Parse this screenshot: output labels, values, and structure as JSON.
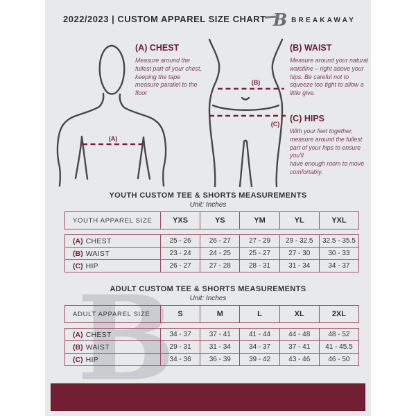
{
  "header": {
    "title": "2022/2023  |  CUSTOM APPAREL SIZE CHART",
    "brand": "BREAKAWAY",
    "logo_letter": "B"
  },
  "guide": {
    "chest": {
      "label": "(A) CHEST",
      "text": "Measure around the fullest part of your chest, keeping the tape measure parallel to the floor"
    },
    "waist": {
      "label": "(B) WAIST",
      "text": "Measure around your natural waistline – right above your hips. Be careful not to squeeze too tight to allow a little give."
    },
    "hips": {
      "label": "(C) HIPS",
      "text": "With your feet together, measure around the fullest part of your hips to ensure you'll\nhave enough room to move comfortably."
    },
    "marker_a": "(A)",
    "marker_b": "(B)",
    "marker_c": "(C)"
  },
  "youth": {
    "title": "YOUTH CUSTOM TEE & SHORTS MEASUREMENTS",
    "unit": "Unit: Inches",
    "header": [
      "YOUTH APPAREL SIZE",
      "YXS",
      "YS",
      "YM",
      "YL",
      "YXL"
    ],
    "rows": [
      {
        "key": "(A)",
        "name": "CHEST",
        "values": [
          "25 - 26",
          "26 - 27",
          "27 - 29",
          "29 - 32.5",
          "32.5 - 35.5"
        ]
      },
      {
        "key": "(B)",
        "name": "WAIST",
        "values": [
          "23 - 24",
          "24 - 25",
          "25 - 27",
          "27 - 30",
          "30 - 33"
        ]
      },
      {
        "key": "(C)",
        "name": "HIP",
        "values": [
          "26 - 27",
          "27 - 28",
          "28 - 31",
          "31 - 34",
          "34 - 37"
        ]
      }
    ]
  },
  "adult": {
    "title": "ADULT CUSTOM TEE & SHORTS MEASUREMENTS",
    "unit": "Unit: Inches",
    "header": [
      "ADULT APPAREL SIZE",
      "S",
      "M",
      "L",
      "XL",
      "2XL"
    ],
    "rows": [
      {
        "key": "(A)",
        "name": "CHEST",
        "values": [
          "34 - 37",
          "37 - 41",
          "41 - 44",
          "44 - 48",
          "48 - 52"
        ]
      },
      {
        "key": "(B)",
        "name": "WAIST",
        "values": [
          "29 - 31",
          "31 - 34",
          "34 - 37",
          "37 - 41",
          "41 - 45.5"
        ]
      },
      {
        "key": "(C)",
        "name": "HIP",
        "values": [
          "34 - 36",
          "36 - 39",
          "39 - 42",
          "43 - 46",
          "46 - 50"
        ]
      }
    ]
  },
  "watermark": "B",
  "colors": {
    "background": "#e8e9ea",
    "maroon": "#721e33",
    "table_border": "#a04e63",
    "dark_text": "#2e2e31"
  }
}
